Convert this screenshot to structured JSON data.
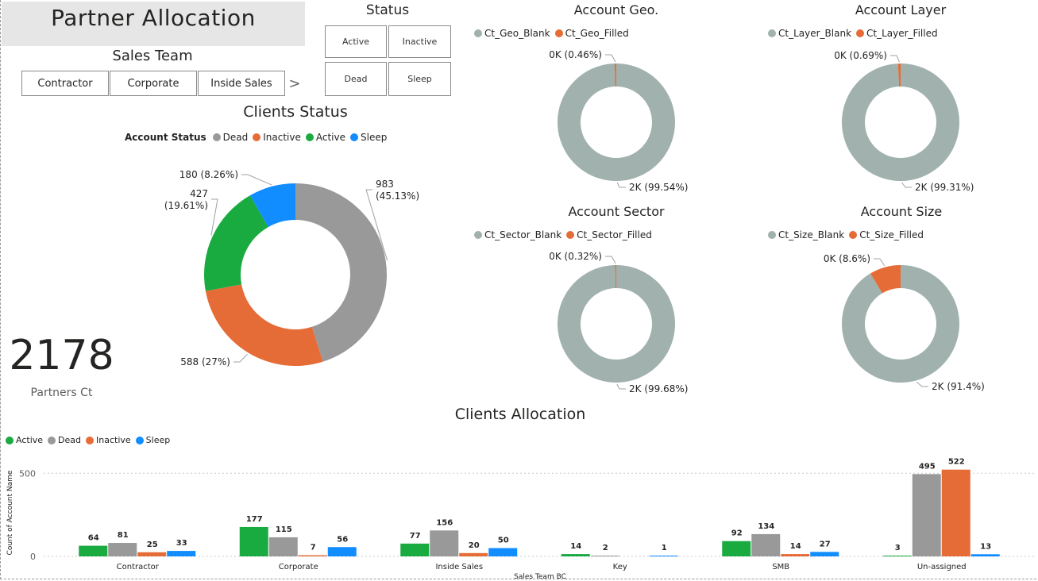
{
  "header": {
    "title": "Partner Allocation"
  },
  "sales_team_slicer": {
    "title": "Sales Team",
    "items": [
      "Contractor",
      "Corporate",
      "Inside Sales"
    ],
    "next_arrow": ">"
  },
  "status_slicer": {
    "title": "Status",
    "items": [
      "Active",
      "Inactive",
      "Dead",
      "Sleep"
    ]
  },
  "kpi": {
    "value": "2178",
    "label": "Partners Ct"
  },
  "colors": {
    "active": "#1aab40",
    "dead": "#999999",
    "inactive": "#e66c37",
    "sleep": "#118dff",
    "blank": "#a0b1ae",
    "filled": "#e66c37"
  },
  "chart_data": [
    {
      "id": "clients_status",
      "type": "pie",
      "title": "Clients Status",
      "legend_title": "Account Status",
      "legend": [
        "Dead",
        "Inactive",
        "Active",
        "Sleep"
      ],
      "slices": [
        {
          "name": "Dead",
          "value": 983,
          "label": "983 (45.13%)"
        },
        {
          "name": "Inactive",
          "value": 588,
          "label": "588 (27%)"
        },
        {
          "name": "Active",
          "value": 427,
          "label": "427 (19.61%)"
        },
        {
          "name": "Sleep",
          "value": 180,
          "label": "180 (8.26%)"
        }
      ]
    },
    {
      "id": "account_geo",
      "type": "pie",
      "title": "Account Geo.",
      "legend": [
        "Ct_Geo_Blank",
        "Ct_Geo_Filled"
      ],
      "slices": [
        {
          "name": "Ct_Geo_Blank",
          "value": 99.54,
          "label": "2K (99.54%)"
        },
        {
          "name": "Ct_Geo_Filled",
          "value": 0.46,
          "label": "0K (0.46%)"
        }
      ]
    },
    {
      "id": "account_layer",
      "type": "pie",
      "title": "Account Layer",
      "legend": [
        "Ct_Layer_Blank",
        "Ct_Layer_Filled"
      ],
      "slices": [
        {
          "name": "Ct_Layer_Blank",
          "value": 99.31,
          "label": "2K (99.31%)"
        },
        {
          "name": "Ct_Layer_Filled",
          "value": 0.69,
          "label": "0K (0.69%)"
        }
      ]
    },
    {
      "id": "account_sector",
      "type": "pie",
      "title": "Account Sector",
      "legend": [
        "Ct_Sector_Blank",
        "Ct_Sector_Filled"
      ],
      "slices": [
        {
          "name": "Ct_Sector_Blank",
          "value": 99.68,
          "label": "2K (99.68%)"
        },
        {
          "name": "Ct_Sector_Filled",
          "value": 0.32,
          "label": "0K (0.32%)"
        }
      ]
    },
    {
      "id": "account_size",
      "type": "pie",
      "title": "Account Size",
      "legend": [
        "Ct_Size_Blank",
        "Ct_Size_Filled"
      ],
      "slices": [
        {
          "name": "Ct_Size_Blank",
          "value": 91.4,
          "label": "2K (91.4%)"
        },
        {
          "name": "Ct_Size_Filled",
          "value": 8.6,
          "label": "0K (8.6%)"
        }
      ]
    },
    {
      "id": "clients_allocation",
      "type": "bar",
      "title": "Clients Allocation",
      "xlabel": "Sales Team BC",
      "ylabel": "Count of Account Name",
      "ylim": [
        0,
        530
      ],
      "yticks": [
        0,
        500
      ],
      "grid": true,
      "legend": "top-left",
      "categories": [
        "Contractor",
        "Corporate",
        "Inside Sales",
        "Key",
        "SMB",
        "Un-assigned"
      ],
      "series": [
        {
          "name": "Active",
          "values": [
            64,
            177,
            77,
            14,
            92,
            3
          ]
        },
        {
          "name": "Dead",
          "values": [
            81,
            115,
            156,
            2,
            134,
            495
          ]
        },
        {
          "name": "Inactive",
          "values": [
            25,
            7,
            20,
            null,
            14,
            522
          ]
        },
        {
          "name": "Sleep",
          "values": [
            33,
            56,
            50,
            1,
            27,
            13
          ]
        }
      ]
    }
  ]
}
